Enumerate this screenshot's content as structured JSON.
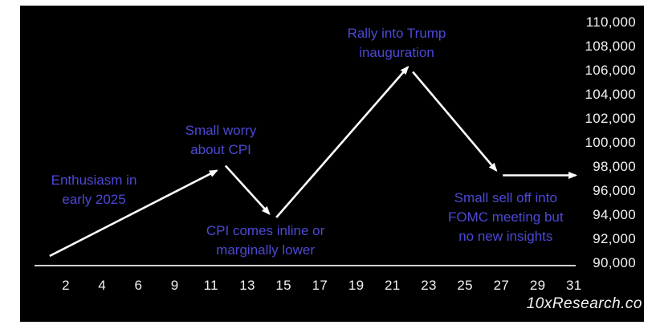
{
  "page": {
    "background": "#ffffff",
    "canvas_background": "#000000"
  },
  "watermark": "10xResearch.co",
  "chart_data": {
    "type": "line",
    "title": "",
    "xlabel": "",
    "ylabel": "",
    "grid": false,
    "legend": false,
    "x_ticks": [
      "2",
      "4",
      "6",
      "9",
      "11",
      "13",
      "15",
      "17",
      "19",
      "21",
      "23",
      "25",
      "27",
      "29",
      "31"
    ],
    "x_tick_values": [
      2,
      4,
      6,
      9,
      11,
      13,
      15,
      17,
      19,
      21,
      23,
      25,
      27,
      29,
      31
    ],
    "y_ticks": [
      "110,000",
      "108,000",
      "106,000",
      "104,000",
      "102,000",
      "100,000",
      "98,000",
      "96,000",
      "94,000",
      "92,000",
      "90,000"
    ],
    "ylim": [
      90000,
      110000
    ],
    "colors": {
      "annotation_text": "#4c49d5",
      "arrow_line": "#ffffff",
      "axis_line": "#cfcfcf",
      "tick_label": "#f2f2f2",
      "watermark": "#f5f5f5"
    },
    "segments": [
      {
        "label": "enthusiasm-rise",
        "from": {
          "day": 1.11,
          "price": 90600
        },
        "to": {
          "day": 11.32,
          "price": 97700
        }
      },
      {
        "label": "cpi-worry-dip",
        "from": {
          "day": 11.8,
          "price": 98100
        },
        "to": {
          "day": 14.21,
          "price": 94100
        }
      },
      {
        "label": "rally-rise",
        "from": {
          "day": 14.6,
          "price": 93800
        },
        "to": {
          "day": 21.85,
          "price": 106300
        }
      },
      {
        "label": "inauguration-fall",
        "from": {
          "day": 22.12,
          "price": 105900
        },
        "to": {
          "day": 26.72,
          "price": 97700
        }
      },
      {
        "label": "fomc-flat",
        "from": {
          "day": 27.08,
          "price": 97300
        },
        "to": {
          "day": 31.1,
          "price": 97300
        }
      }
    ],
    "annotations": [
      {
        "lines": [
          "Enthusiasm in",
          "early 2025"
        ],
        "day": 3.55,
        "price": 96050
      },
      {
        "lines": [
          "Small worry",
          "about CPI"
        ],
        "day": 11.54,
        "price": 100200
      },
      {
        "lines": [
          "CPI comes inline or",
          "marginally lower"
        ],
        "day": 14.0,
        "price": 91850
      },
      {
        "lines": [
          "Rally into Trump",
          "inauguration"
        ],
        "day": 21.23,
        "price": 108300
      },
      {
        "lines": [
          "Small sell off into",
          "FOMC meeting but",
          "no new insights"
        ],
        "day": 27.24,
        "price": 93800
      }
    ]
  }
}
